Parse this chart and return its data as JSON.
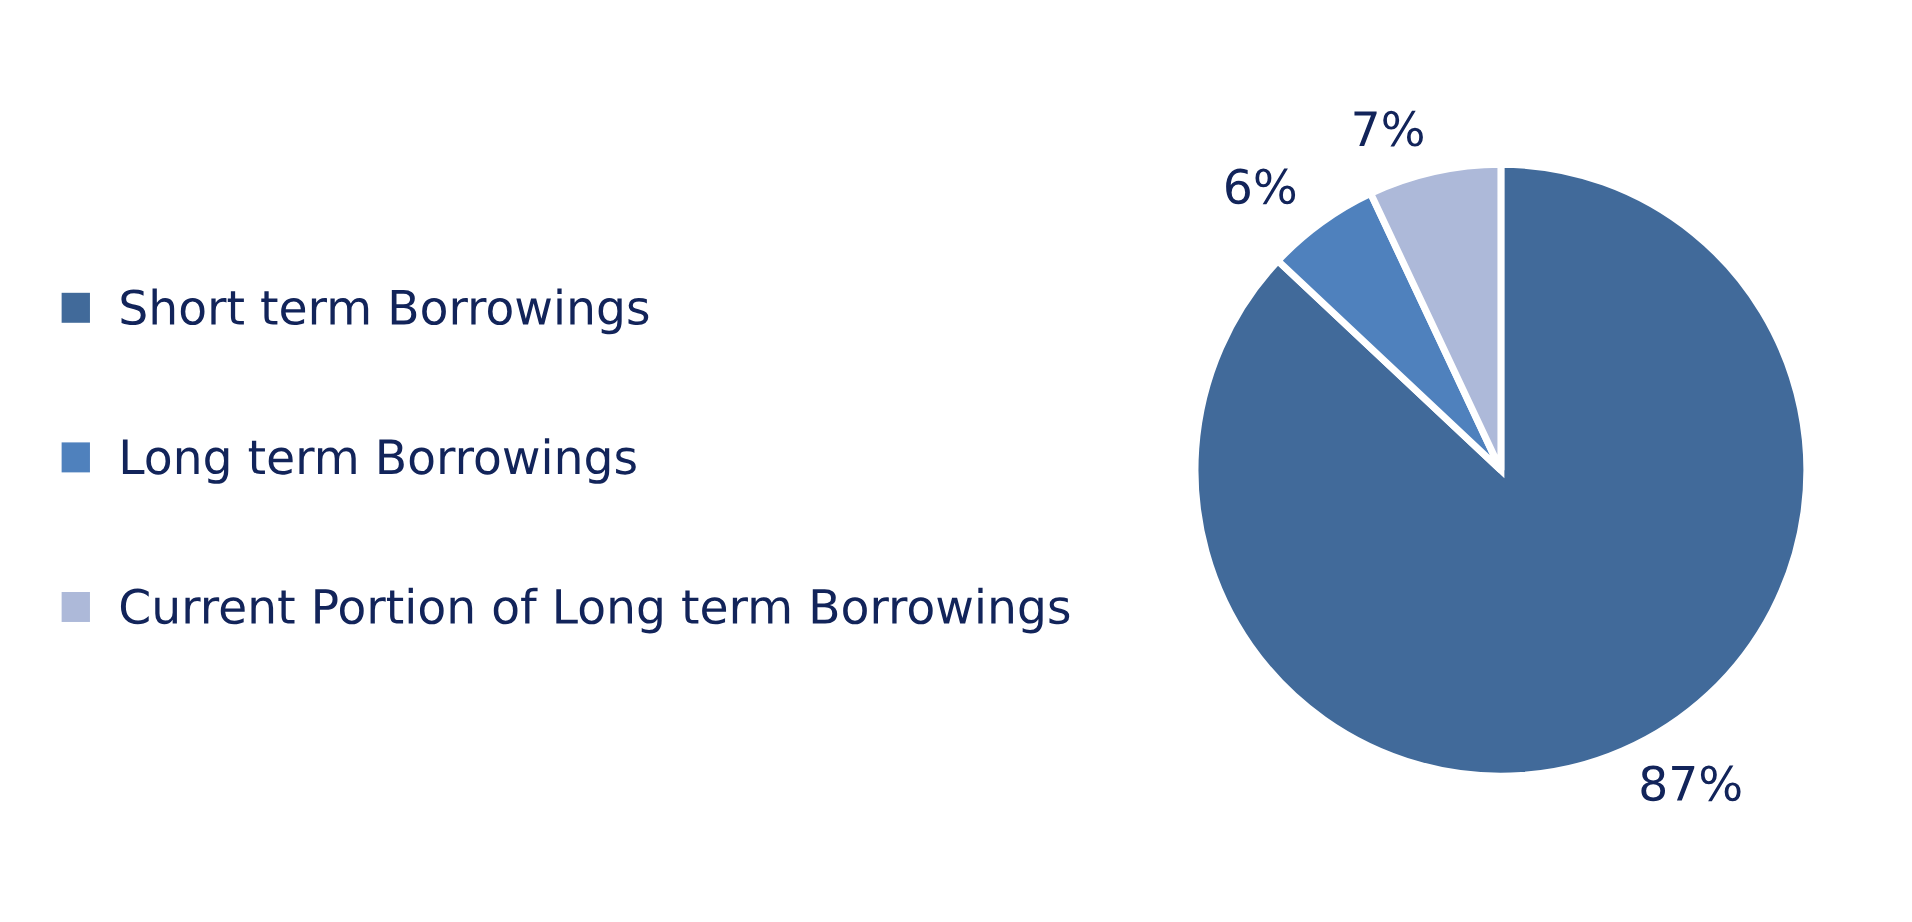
{
  "chart_data": {
    "type": "pie",
    "categories": [
      "Short term Borrowings",
      "Long term Borrowings",
      "Current Portion of Long term Borrowings"
    ],
    "values": [
      87,
      6,
      7
    ],
    "value_labels": [
      "87%",
      "6%",
      "7%"
    ],
    "colors": [
      "#416a9a",
      "#4f81bd",
      "#adb9d9"
    ],
    "legend": "left"
  }
}
